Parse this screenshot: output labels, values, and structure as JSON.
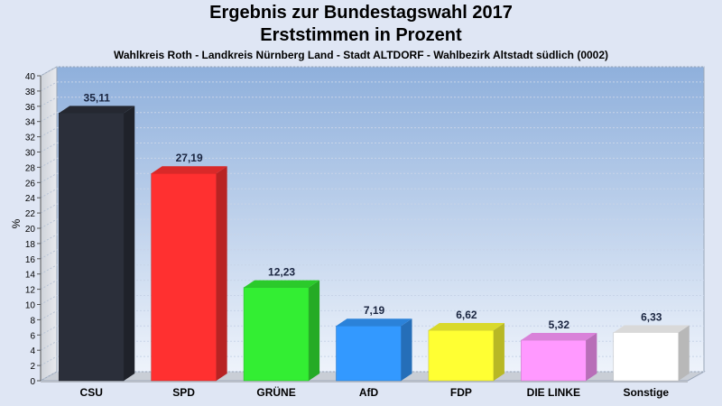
{
  "header": {
    "title_line1": "Ergebnis zur Bundestagswahl 2017",
    "title_line2": "Erststimmen in Prozent",
    "subtitle": "Wahlkreis Roth - Landkreis Nürnberg Land - Stadt ALTDORF - Wahlbezirk Altstadt südlich (0002)"
  },
  "chart_data": {
    "type": "bar",
    "title": "Ergebnis zur Bundestagswahl 2017",
    "subtitle": "Erststimmen in Prozent",
    "categories": [
      "CSU",
      "SPD",
      "GRÜNE",
      "AfD",
      "FDP",
      "DIE LINKE",
      "Sonstige"
    ],
    "values": [
      35.11,
      27.19,
      12.23,
      7.19,
      6.62,
      5.32,
      6.33
    ],
    "value_labels": [
      "35,11",
      "27,19",
      "12,23",
      "7,19",
      "6,62",
      "5,32",
      "6,33"
    ],
    "colors": [
      "#2b2f3a",
      "#ff3030",
      "#33ee33",
      "#3399ff",
      "#ffff33",
      "#ff99ff",
      "#ffffff"
    ],
    "ylabel": "%",
    "xlabel": "",
    "ylim": [
      0,
      40
    ],
    "yticks": [
      0,
      2,
      4,
      6,
      8,
      10,
      12,
      14,
      16,
      18,
      20,
      22,
      24,
      26,
      28,
      30,
      32,
      34,
      36,
      38,
      40
    ],
    "grid": true,
    "legend": "none"
  }
}
